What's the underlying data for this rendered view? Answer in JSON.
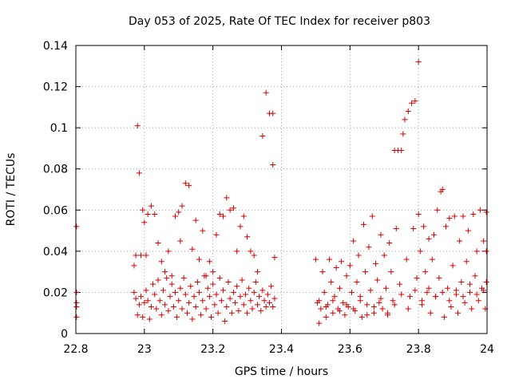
{
  "chart_data": {
    "type": "scatter",
    "title": "Day 053 of 2025, Rate Of TEC Index for receiver p803",
    "xlabel": "GPS time / hours",
    "ylabel": "ROTI / TECUs",
    "xlim": [
      22.8,
      24.0
    ],
    "ylim": [
      0,
      0.14
    ],
    "xticks": [
      22.8,
      23.0,
      23.2,
      23.4,
      23.6,
      23.8,
      24.0
    ],
    "xtick_labels": [
      "22.8",
      "23",
      "23.2",
      "23.4",
      "23.6",
      "23.8",
      "24"
    ],
    "yticks": [
      0,
      0.02,
      0.04,
      0.06,
      0.08,
      0.1,
      0.12,
      0.14
    ],
    "ytick_labels": [
      "0",
      "0.02",
      "0.04",
      "0.06",
      "0.08",
      "0.1",
      "0.12",
      "0.14"
    ],
    "grid": true,
    "marker": "+",
    "color": "#d40000",
    "series": [
      {
        "name": "ROTI",
        "points": [
          [
            22.802,
            0.052
          ],
          [
            22.802,
            0.02
          ],
          [
            22.802,
            0.015
          ],
          [
            22.802,
            0.013
          ],
          [
            22.802,
            0.008
          ],
          [
            22.97,
            0.033
          ],
          [
            22.975,
            0.038
          ],
          [
            22.98,
            0.101
          ],
          [
            22.985,
            0.078
          ],
          [
            22.99,
            0.038
          ],
          [
            22.995,
            0.06
          ],
          [
            23.0,
            0.054
          ],
          [
            23.005,
            0.038
          ],
          [
            23.01,
            0.058
          ],
          [
            23.02,
            0.062
          ],
          [
            23.03,
            0.058
          ],
          [
            23.04,
            0.044
          ],
          [
            23.05,
            0.035
          ],
          [
            23.06,
            0.03
          ],
          [
            23.07,
            0.04
          ],
          [
            23.08,
            0.028
          ],
          [
            23.09,
            0.057
          ],
          [
            23.1,
            0.059
          ],
          [
            23.105,
            0.045
          ],
          [
            23.11,
            0.062
          ],
          [
            23.12,
            0.073
          ],
          [
            23.13,
            0.072
          ],
          [
            23.14,
            0.041
          ],
          [
            23.15,
            0.055
          ],
          [
            23.16,
            0.036
          ],
          [
            23.17,
            0.05
          ],
          [
            23.18,
            0.028
          ],
          [
            23.19,
            0.035
          ],
          [
            23.2,
            0.03
          ],
          [
            23.21,
            0.048
          ],
          [
            23.22,
            0.058
          ],
          [
            23.23,
            0.057
          ],
          [
            23.24,
            0.066
          ],
          [
            23.25,
            0.06
          ],
          [
            23.26,
            0.061
          ],
          [
            23.27,
            0.04
          ],
          [
            23.28,
            0.052
          ],
          [
            23.29,
            0.057
          ],
          [
            23.3,
            0.047
          ],
          [
            23.31,
            0.04
          ],
          [
            23.32,
            0.038
          ],
          [
            23.33,
            0.03
          ],
          [
            23.345,
            0.096
          ],
          [
            23.355,
            0.117
          ],
          [
            23.365,
            0.107
          ],
          [
            23.375,
            0.107
          ],
          [
            23.375,
            0.082
          ],
          [
            23.38,
            0.037
          ],
          [
            22.97,
            0.02
          ],
          [
            22.975,
            0.017
          ],
          [
            22.98,
            0.009
          ],
          [
            22.985,
            0.014
          ],
          [
            22.99,
            0.018
          ],
          [
            22.995,
            0.008
          ],
          [
            23.0,
            0.015
          ],
          [
            23.005,
            0.021
          ],
          [
            23.01,
            0.016
          ],
          [
            23.015,
            0.007
          ],
          [
            23.02,
            0.013
          ],
          [
            23.025,
            0.024
          ],
          [
            23.03,
            0.019
          ],
          [
            23.035,
            0.012
          ],
          [
            23.04,
            0.026
          ],
          [
            23.045,
            0.016
          ],
          [
            23.05,
            0.009
          ],
          [
            23.055,
            0.021
          ],
          [
            23.06,
            0.014
          ],
          [
            23.065,
            0.027
          ],
          [
            23.07,
            0.011
          ],
          [
            23.075,
            0.018
          ],
          [
            23.08,
            0.024
          ],
          [
            23.085,
            0.013
          ],
          [
            23.09,
            0.02
          ],
          [
            23.095,
            0.008
          ],
          [
            23.1,
            0.016
          ],
          [
            23.105,
            0.022
          ],
          [
            23.11,
            0.012
          ],
          [
            23.115,
            0.027
          ],
          [
            23.12,
            0.019
          ],
          [
            23.125,
            0.01
          ],
          [
            23.13,
            0.015
          ],
          [
            23.135,
            0.023
          ],
          [
            23.14,
            0.007
          ],
          [
            23.145,
            0.018
          ],
          [
            23.15,
            0.013
          ],
          [
            23.155,
            0.025
          ],
          [
            23.16,
            0.02
          ],
          [
            23.165,
            0.009
          ],
          [
            23.17,
            0.016
          ],
          [
            23.175,
            0.028
          ],
          [
            23.18,
            0.012
          ],
          [
            23.185,
            0.022
          ],
          [
            23.19,
            0.018
          ],
          [
            23.195,
            0.008
          ],
          [
            23.2,
            0.024
          ],
          [
            23.205,
            0.014
          ],
          [
            23.21,
            0.019
          ],
          [
            23.215,
            0.01
          ],
          [
            23.22,
            0.027
          ],
          [
            23.225,
            0.016
          ],
          [
            23.23,
            0.021
          ],
          [
            23.235,
            0.006
          ],
          [
            23.24,
            0.013
          ],
          [
            23.245,
            0.025
          ],
          [
            23.25,
            0.017
          ],
          [
            23.255,
            0.01
          ],
          [
            23.26,
            0.02
          ],
          [
            23.265,
            0.015
          ],
          [
            23.27,
            0.023
          ],
          [
            23.275,
            0.011
          ],
          [
            23.28,
            0.018
          ],
          [
            23.285,
            0.026
          ],
          [
            23.29,
            0.014
          ],
          [
            23.295,
            0.019
          ],
          [
            23.3,
            0.01
          ],
          [
            23.305,
            0.022
          ],
          [
            23.31,
            0.016
          ],
          [
            23.315,
            0.012
          ],
          [
            23.32,
            0.02
          ],
          [
            23.325,
            0.025
          ],
          [
            23.33,
            0.014
          ],
          [
            23.335,
            0.018
          ],
          [
            23.34,
            0.011
          ],
          [
            23.345,
            0.021
          ],
          [
            23.35,
            0.016
          ],
          [
            23.355,
            0.013
          ],
          [
            23.36,
            0.019
          ],
          [
            23.365,
            0.015
          ],
          [
            23.37,
            0.023
          ],
          [
            23.375,
            0.013
          ],
          [
            23.38,
            0.017
          ],
          [
            23.5,
            0.036
          ],
          [
            23.505,
            0.015
          ],
          [
            23.51,
            0.005
          ],
          [
            23.515,
            0.012
          ],
          [
            23.52,
            0.03
          ],
          [
            23.525,
            0.02
          ],
          [
            23.53,
            0.008
          ],
          [
            23.535,
            0.014
          ],
          [
            23.54,
            0.036
          ],
          [
            23.545,
            0.025
          ],
          [
            23.55,
            0.01
          ],
          [
            23.555,
            0.018
          ],
          [
            23.56,
            0.032
          ],
          [
            23.565,
            0.012
          ],
          [
            23.57,
            0.022
          ],
          [
            23.575,
            0.035
          ],
          [
            23.58,
            0.015
          ],
          [
            23.585,
            0.009
          ],
          [
            23.59,
            0.028
          ],
          [
            23.595,
            0.013
          ],
          [
            23.6,
            0.033
          ],
          [
            23.605,
            0.02
          ],
          [
            23.61,
            0.045
          ],
          [
            23.615,
            0.011
          ],
          [
            23.62,
            0.025
          ],
          [
            23.625,
            0.038
          ],
          [
            23.63,
            0.018
          ],
          [
            23.635,
            0.008
          ],
          [
            23.64,
            0.053
          ],
          [
            23.645,
            0.03
          ],
          [
            23.65,
            0.014
          ],
          [
            23.655,
            0.042
          ],
          [
            23.66,
            0.021
          ],
          [
            23.665,
            0.057
          ],
          [
            23.67,
            0.01
          ],
          [
            23.675,
            0.034
          ],
          [
            23.68,
            0.026
          ],
          [
            23.685,
            0.015
          ],
          [
            23.69,
            0.048
          ],
          [
            23.695,
            0.012
          ],
          [
            23.7,
            0.038
          ],
          [
            23.705,
            0.022
          ],
          [
            23.71,
            0.009
          ],
          [
            23.715,
            0.044
          ],
          [
            23.72,
            0.03
          ],
          [
            23.725,
            0.016
          ],
          [
            23.73,
            0.089
          ],
          [
            23.735,
            0.051
          ],
          [
            23.74,
            0.089
          ],
          [
            23.745,
            0.024
          ],
          [
            23.75,
            0.089
          ],
          [
            23.755,
            0.097
          ],
          [
            23.76,
            0.104
          ],
          [
            23.765,
            0.036
          ],
          [
            23.77,
            0.108
          ],
          [
            23.775,
            0.018
          ],
          [
            23.78,
            0.112
          ],
          [
            23.785,
            0.051
          ],
          [
            23.79,
            0.113
          ],
          [
            23.795,
            0.027
          ],
          [
            23.8,
            0.132
          ],
          [
            23.8,
            0.058
          ],
          [
            23.805,
            0.04
          ],
          [
            23.81,
            0.014
          ],
          [
            23.815,
            0.052
          ],
          [
            23.82,
            0.03
          ],
          [
            23.825,
            0.02
          ],
          [
            23.83,
            0.046
          ],
          [
            23.835,
            0.01
          ],
          [
            23.84,
            0.036
          ],
          [
            23.845,
            0.048
          ],
          [
            23.85,
            0.018
          ],
          [
            23.855,
            0.06
          ],
          [
            23.86,
            0.027
          ],
          [
            23.865,
            0.069
          ],
          [
            23.87,
            0.07
          ],
          [
            23.875,
            0.008
          ],
          [
            23.88,
            0.052
          ],
          [
            23.885,
            0.022
          ],
          [
            23.89,
            0.056
          ],
          [
            23.895,
            0.013
          ],
          [
            23.9,
            0.033
          ],
          [
            23.905,
            0.057
          ],
          [
            23.91,
            0.019
          ],
          [
            23.915,
            0.01
          ],
          [
            23.92,
            0.045
          ],
          [
            23.925,
            0.025
          ],
          [
            23.93,
            0.057
          ],
          [
            23.935,
            0.015
          ],
          [
            23.94,
            0.035
          ],
          [
            23.945,
            0.05
          ],
          [
            23.95,
            0.02
          ],
          [
            23.955,
            0.012
          ],
          [
            23.96,
            0.058
          ],
          [
            23.965,
            0.028
          ],
          [
            23.97,
            0.04
          ],
          [
            23.975,
            0.016
          ],
          [
            23.98,
            0.06
          ],
          [
            23.985,
            0.022
          ],
          [
            23.99,
            0.045
          ],
          [
            23.995,
            0.012
          ],
          [
            23.998,
            0.059
          ],
          [
            23.998,
            0.04
          ],
          [
            23.998,
            0.025
          ],
          [
            23.51,
            0.016
          ],
          [
            23.53,
            0.013
          ],
          [
            23.55,
            0.016
          ],
          [
            23.57,
            0.011
          ],
          [
            23.59,
            0.014
          ],
          [
            23.61,
            0.012
          ],
          [
            23.63,
            0.016
          ],
          [
            23.65,
            0.009
          ],
          [
            23.67,
            0.013
          ],
          [
            23.69,
            0.017
          ],
          [
            23.71,
            0.01
          ],
          [
            23.73,
            0.014
          ],
          [
            23.75,
            0.019
          ],
          [
            23.77,
            0.012
          ],
          [
            23.79,
            0.021
          ],
          [
            23.81,
            0.016
          ],
          [
            23.83,
            0.022
          ],
          [
            23.85,
            0.018
          ],
          [
            23.87,
            0.02
          ],
          [
            23.89,
            0.016
          ],
          [
            23.91,
            0.021
          ],
          [
            23.93,
            0.018
          ],
          [
            23.95,
            0.024
          ],
          [
            23.97,
            0.019
          ],
          [
            23.99,
            0.021
          ]
        ]
      }
    ]
  }
}
